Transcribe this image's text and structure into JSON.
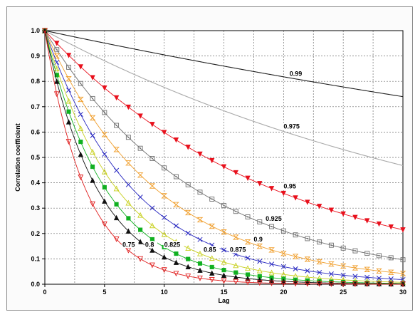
{
  "chart_data": {
    "type": "line",
    "title": "",
    "xlabel": "Lag",
    "ylabel": "Correlation coefficient",
    "xlim": [
      0,
      30
    ],
    "ylim": [
      0,
      1.0
    ],
    "x_ticks": [
      0,
      5,
      10,
      15,
      20,
      25,
      30
    ],
    "y_ticks": [
      0.0,
      0.1,
      0.2,
      0.3,
      0.4,
      0.5,
      0.6,
      0.7,
      0.8,
      0.9,
      1.0
    ],
    "x_tick_labels": [
      "0",
      "5",
      "10",
      "15",
      "20",
      "25",
      "30"
    ],
    "y_tick_labels": [
      "0.0",
      "0.1",
      "0.2",
      "0.3",
      "0.4",
      "0.5",
      "0.6",
      "0.7",
      "0.8",
      "0.9",
      "1.0"
    ],
    "grid": true,
    "x_minor_grid_step": 2.5,
    "lag_max": 30,
    "series": [
      {
        "name": "0.99",
        "rho": 0.99,
        "color": "#202020",
        "marker": "none",
        "label": {
          "text": "0.99",
          "lag": 20.5,
          "r": 0.822
        }
      },
      {
        "name": "0.975",
        "rho": 0.975,
        "color": "#a8a8a8",
        "marker": "none",
        "label": {
          "text": "0.975",
          "lag": 20.0,
          "r": 0.614
        }
      },
      {
        "name": "0.95",
        "rho": 0.95,
        "color": "#e8101c",
        "marker": "triangle-down-filled",
        "label": {
          "text": "0.95",
          "lag": 20.0,
          "r": 0.378
        }
      },
      {
        "name": "0.925",
        "rho": 0.925,
        "color": "#707070",
        "marker": "square-dot",
        "label": {
          "text": "0.925",
          "lag": 18.5,
          "r": 0.25
        }
      },
      {
        "name": "0.9",
        "rho": 0.9,
        "color": "#f0a030",
        "marker": "hourglass",
        "label": {
          "text": "0.9",
          "lag": 17.5,
          "r": 0.168
        }
      },
      {
        "name": "0.875",
        "rho": 0.875,
        "color": "#2828c0",
        "marker": "x",
        "label": {
          "text": "0.875",
          "lag": 15.5,
          "r": 0.128
        }
      },
      {
        "name": "0.85",
        "rho": 0.85,
        "color": "#c8d020",
        "marker": "triangle-up-open",
        "label": {
          "text": "0.85",
          "lag": 13.3,
          "r": 0.128
        }
      },
      {
        "name": "0.825",
        "rho": 0.825,
        "color": "#10b020",
        "marker": "square-filled",
        "label": {
          "text": "0.825",
          "lag": 10.0,
          "r": 0.148
        }
      },
      {
        "name": "0.8",
        "rho": 0.8,
        "color": "#101010",
        "marker": "triangle-up-filled",
        "label": {
          "text": "0.8",
          "lag": 8.4,
          "r": 0.148
        }
      },
      {
        "name": "0.75",
        "rho": 0.75,
        "color": "#e02020",
        "marker": "triangle-down-open",
        "label": {
          "text": "0.75",
          "lag": 6.5,
          "r": 0.148
        }
      }
    ]
  }
}
